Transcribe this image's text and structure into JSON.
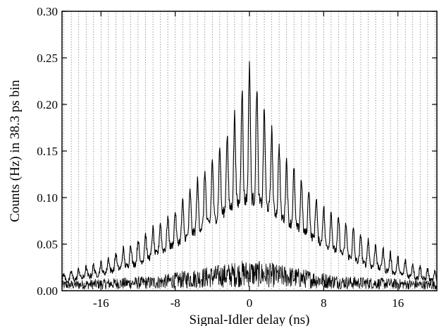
{
  "chart_data": {
    "type": "line",
    "title": "",
    "xlabel": "Signal-Idler delay (ns)",
    "ylabel": "Counts (Hz) in 38.3 ps bin",
    "xlim": [
      -20.2,
      20.2
    ],
    "ylim": [
      0,
      0.3
    ],
    "x_ticks": [
      -16,
      -8,
      0,
      8,
      16
    ],
    "x_tick_labels": [
      "-16",
      "-8",
      "0",
      "8",
      "16"
    ],
    "y_ticks": [
      0.0,
      0.05,
      0.1,
      0.15,
      0.2,
      0.25,
      0.3
    ],
    "y_tick_labels": [
      "0.00",
      "0.05",
      "0.10",
      "0.15",
      "0.20",
      "0.25",
      "0.30"
    ],
    "grid": "vertical dotted lines at each comb period",
    "comb_period_ns": 0.8,
    "legend": "none",
    "line_color": "#000000",
    "series": [
      {
        "kind": "coincidence comb (upper envelope)",
        "x": [
          -20,
          -16,
          -12,
          -8,
          -4,
          -2,
          0,
          2,
          4,
          8,
          12,
          16,
          20
        ],
        "y": [
          0.018,
          0.03,
          0.055,
          0.085,
          0.14,
          0.175,
          0.245,
          0.18,
          0.14,
          0.09,
          0.06,
          0.035,
          0.02
        ]
      },
      {
        "kind": "coincidence comb (lower envelope)",
        "x": [
          -20,
          -16,
          -12,
          -8,
          -4,
          -2,
          0,
          2,
          4,
          8,
          12,
          16,
          20
        ],
        "y": [
          0.01,
          0.018,
          0.03,
          0.05,
          0.075,
          0.09,
          0.1,
          0.09,
          0.075,
          0.05,
          0.03,
          0.018,
          0.01
        ]
      },
      {
        "kind": "accidental background",
        "x": [
          -20,
          -10,
          -4,
          0,
          4,
          10,
          20
        ],
        "y": [
          0.008,
          0.012,
          0.02,
          0.025,
          0.02,
          0.012,
          0.008
        ]
      }
    ]
  }
}
